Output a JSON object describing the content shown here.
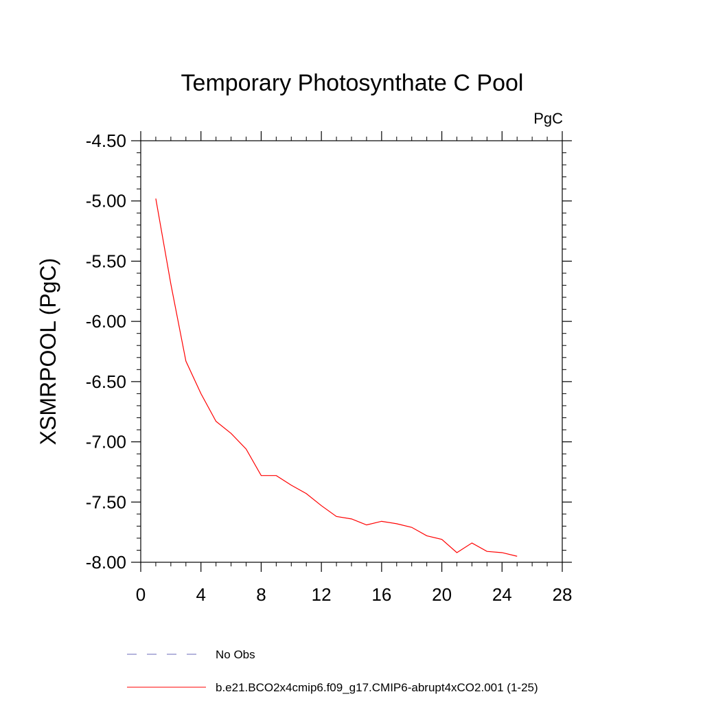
{
  "chart_data": {
    "type": "line",
    "title": "Temporary Photosynthate C Pool",
    "units_label": "PgC",
    "xlabel": "",
    "ylabel": "XSMRPOOL  (PgC)",
    "xlim": [
      0,
      28
    ],
    "ylim": [
      -8.0,
      -4.5
    ],
    "x_ticks": [
      0,
      4,
      8,
      12,
      16,
      20,
      24,
      28
    ],
    "x_tick_labels": [
      "0",
      "4",
      "8",
      "12",
      "16",
      "20",
      "24",
      "28"
    ],
    "y_ticks": [
      -4.5,
      -5.0,
      -5.5,
      -6.0,
      -6.5,
      -7.0,
      -7.5,
      -8.0
    ],
    "y_tick_labels": [
      "-4.50",
      "-5.00",
      "-5.50",
      "-6.00",
      "-6.50",
      "-7.00",
      "-7.50",
      "-8.00"
    ],
    "grid": false,
    "legend_position": "bottom",
    "series": [
      {
        "name": "b.e21.BCO2x4cmip6.f09_g17.CMIP6-abrupt4xCO2.001 (1-25)",
        "color": "#ff0000",
        "style": "solid",
        "x": [
          1,
          2,
          3,
          4,
          5,
          6,
          7,
          8,
          9,
          10,
          11,
          12,
          13,
          14,
          15,
          16,
          17,
          18,
          19,
          20,
          21,
          22,
          23,
          24,
          25
        ],
        "values": [
          -4.98,
          -5.69,
          -6.33,
          -6.6,
          -6.83,
          -6.93,
          -7.06,
          -7.28,
          -7.28,
          -7.36,
          -7.43,
          -7.53,
          -7.62,
          -7.64,
          -7.69,
          -7.66,
          -7.68,
          -7.71,
          -7.78,
          -7.81,
          -7.92,
          -7.84,
          -7.91,
          -7.92,
          -7.95
        ]
      }
    ],
    "legend": [
      {
        "label": "No Obs",
        "color": "#6a6ab8",
        "style": "dashed"
      },
      {
        "label": "b.e21.BCO2x4cmip6.f09_g17.CMIP6-abrupt4xCO2.001 (1-25)",
        "color": "#ff0000",
        "style": "solid"
      }
    ]
  }
}
